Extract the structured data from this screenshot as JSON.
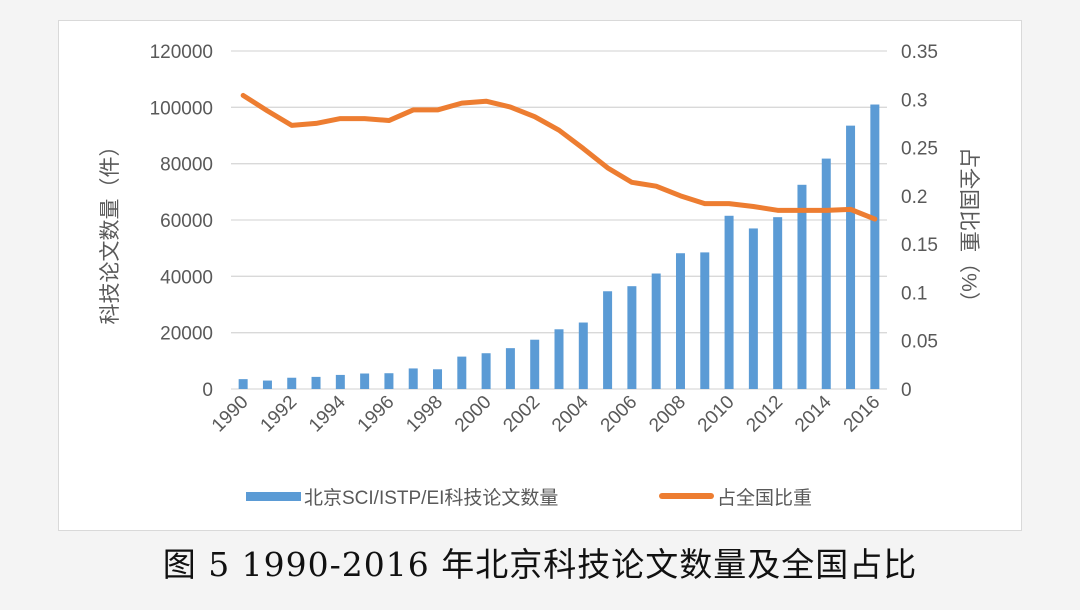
{
  "caption": "图 5 1990-2016 年北京科技论文数量及全国占比",
  "chart_data": {
    "type": "bar",
    "title": "",
    "categories": [
      "1990",
      "1991",
      "1992",
      "1993",
      "1994",
      "1995",
      "1996",
      "1997",
      "1998",
      "1999",
      "2000",
      "2001",
      "2002",
      "2003",
      "2004",
      "2005",
      "2006",
      "2007",
      "2008",
      "2009",
      "2010",
      "2011",
      "2012",
      "2013",
      "2014",
      "2015",
      "2016"
    ],
    "x_tick_labels": [
      "1990",
      "1992",
      "1994",
      "1996",
      "1998",
      "2000",
      "2002",
      "2004",
      "2006",
      "2008",
      "2010",
      "2012",
      "2014",
      "2016"
    ],
    "series": [
      {
        "name": "北京SCI/ISTP/EI科技论文数量",
        "type": "bar",
        "axis": "left",
        "color": "#5b9bd5",
        "values": [
          3500,
          3000,
          4000,
          4300,
          5000,
          5500,
          5600,
          7300,
          7000,
          11500,
          12700,
          14500,
          17500,
          21200,
          23600,
          34700,
          36500,
          41000,
          48200,
          48500,
          61500,
          57000,
          61000,
          72500,
          81800,
          93500,
          101000
        ]
      },
      {
        "name": "占全国比重",
        "type": "line",
        "axis": "right",
        "color": "#ed7d31",
        "values": [
          0.304,
          0.288,
          0.273,
          0.275,
          0.28,
          0.28,
          0.278,
          0.289,
          0.289,
          0.296,
          0.298,
          0.292,
          0.282,
          0.268,
          0.249,
          0.229,
          0.214,
          0.21,
          0.2,
          0.192,
          0.192,
          0.189,
          0.185,
          0.185,
          0.185,
          0.186,
          0.176
        ]
      }
    ],
    "ylabel": "科技论文数量（件）",
    "ylim": [
      0,
      120000
    ],
    "y_ticks": [
      "0",
      "20000",
      "40000",
      "60000",
      "80000",
      "100000",
      "120000"
    ],
    "y2label": "占全国比重（%）",
    "y2lim": [
      0,
      0.35
    ],
    "y2_ticks": [
      "0",
      "0.05",
      "0.1",
      "0.15",
      "0.2",
      "0.25",
      "0.3",
      "0.35"
    ],
    "xlabel": "",
    "grid": true,
    "legend_position": "bottom"
  }
}
